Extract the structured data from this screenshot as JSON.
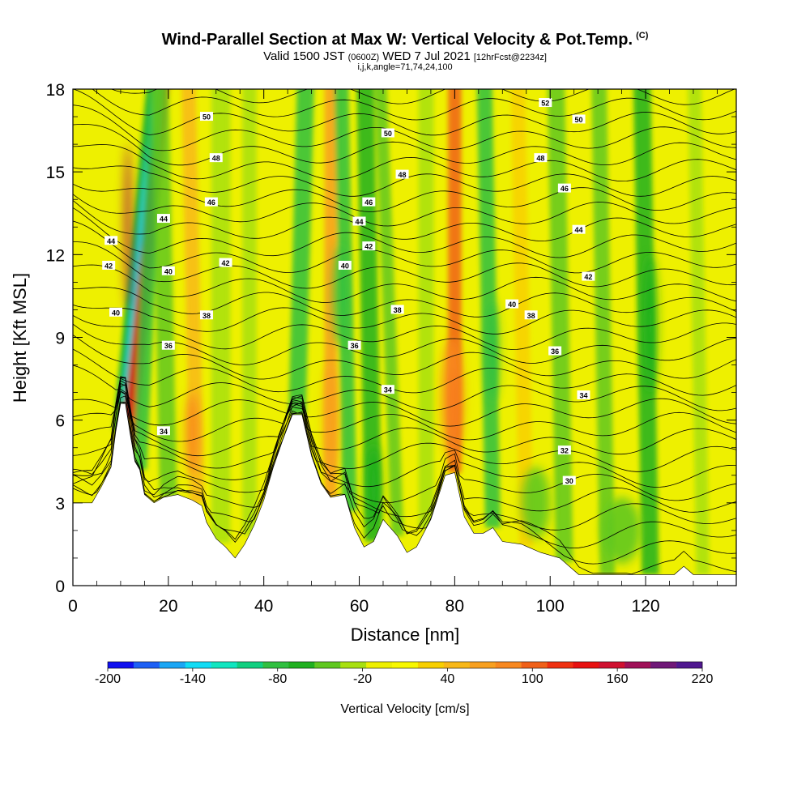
{
  "title": "Wind-Parallel Section at Max W: Vertical Velocity & Pot.Temp.",
  "copyright": "(C)",
  "subtitle_a": "Valid 1500 JST",
  "subtitle_b": "(0600Z)",
  "subtitle_c": "WED 7 Jul 2021",
  "subtitle_d": "[12hrFcst@2234z]",
  "subtitle2": "i,j,k,angle=71,74,24,100",
  "colorbar": {
    "label": "Vertical Velocity [cm/s]",
    "ticks": [
      "-200",
      "-140",
      "-80",
      "-20",
      "40",
      "100",
      "160",
      "220"
    ],
    "colors": [
      "#1010f0",
      "#1e60f5",
      "#1aa6f5",
      "#10dcf5",
      "#10e6c0",
      "#10d080",
      "#30c040",
      "#20b020",
      "#60c820",
      "#a8e010",
      "#eef000",
      "#f8f800",
      "#f8d000",
      "#f8b818",
      "#f8a020",
      "#f88820",
      "#f06018",
      "#f03010",
      "#e81010",
      "#d01030",
      "#a01058",
      "#701878",
      "#501890"
    ]
  },
  "chart_data": {
    "type": "heatmap",
    "xlabel": "Distance [nm]",
    "ylabel": "Height [Kft MSL]",
    "xlim": [
      0,
      139
    ],
    "ylim": [
      0,
      18
    ],
    "xticks": [
      "0",
      "20",
      "40",
      "60",
      "80",
      "100",
      "120"
    ],
    "yticks": [
      "0",
      "3",
      "6",
      "9",
      "12",
      "15",
      "18"
    ],
    "terrain": [
      [
        0,
        3
      ],
      [
        4,
        3
      ],
      [
        6,
        3.6
      ],
      [
        8,
        4.3
      ],
      [
        9,
        5.6
      ],
      [
        10,
        6.6
      ],
      [
        11,
        6.6
      ],
      [
        12,
        5.5
      ],
      [
        13,
        4.5
      ],
      [
        14,
        4.2
      ],
      [
        15,
        3.3
      ],
      [
        17,
        3
      ],
      [
        19,
        3.2
      ],
      [
        22,
        3.3
      ],
      [
        25,
        3.1
      ],
      [
        27,
        2.9
      ],
      [
        28,
        2.3
      ],
      [
        30,
        1.7
      ],
      [
        32,
        1.4
      ],
      [
        34,
        1
      ],
      [
        36,
        1.5
      ],
      [
        38,
        2.2
      ],
      [
        40,
        3.1
      ],
      [
        42,
        4.3
      ],
      [
        44,
        5.3
      ],
      [
        46,
        6.2
      ],
      [
        48,
        6.2
      ],
      [
        50,
        4.7
      ],
      [
        52,
        3.7
      ],
      [
        54,
        3.2
      ],
      [
        57,
        3.3
      ],
      [
        59,
        2.1
      ],
      [
        61,
        1.4
      ],
      [
        63,
        1.6
      ],
      [
        65,
        2.4
      ],
      [
        66,
        2.2
      ],
      [
        68,
        1.8
      ],
      [
        70,
        1.2
      ],
      [
        72,
        1.4
      ],
      [
        75,
        2.4
      ],
      [
        78,
        4
      ],
      [
        80,
        4.1
      ],
      [
        82,
        2.5
      ],
      [
        84,
        1.9
      ],
      [
        86,
        1.9
      ],
      [
        88,
        2.1
      ],
      [
        90,
        1.6
      ],
      [
        94,
        1.5
      ],
      [
        98,
        1.2
      ],
      [
        102,
        1
      ],
      [
        106,
        0.4
      ],
      [
        120,
        0.4
      ],
      [
        126,
        0.4
      ],
      [
        128,
        0.7
      ],
      [
        130,
        0.4
      ],
      [
        139,
        0.4
      ]
    ],
    "streaks": [
      {
        "x": 11.5,
        "w": 1.3,
        "c": "#c01020",
        "tilt": -0.4
      },
      {
        "x": 12.5,
        "w": 0.8,
        "c": "#f03010",
        "tilt": -0.4
      },
      {
        "x": 10.0,
        "w": 1.0,
        "c": "#10d0e0",
        "tilt": -0.4
      },
      {
        "x": 9.0,
        "w": 0.6,
        "c": "#20b020",
        "tilt": -0.4
      },
      {
        "x": 14.0,
        "w": 1.5,
        "c": "#30c040",
        "tilt": -0.2
      },
      {
        "x": 20.0,
        "w": 1.8,
        "c": "#60c820",
        "tilt": 0.1
      },
      {
        "x": 26.0,
        "w": 1.5,
        "c": "#f8b818",
        "tilt": 0.1
      },
      {
        "x": 31.0,
        "w": 2.0,
        "c": "#a8e010",
        "tilt": 0.0
      },
      {
        "x": 37.0,
        "w": 1.5,
        "c": "#a8e010",
        "tilt": 0.0
      },
      {
        "x": 47.0,
        "w": 1.8,
        "c": "#30c040",
        "tilt": -0.1
      },
      {
        "x": 54.0,
        "w": 1.3,
        "c": "#f8a020",
        "tilt": 0.0
      },
      {
        "x": 58.0,
        "w": 1.5,
        "c": "#30c040",
        "tilt": 0.1
      },
      {
        "x": 63.0,
        "w": 1.8,
        "c": "#20b020",
        "tilt": 0.1
      },
      {
        "x": 68.0,
        "w": 1.3,
        "c": "#60c820",
        "tilt": 0.2
      },
      {
        "x": 74.0,
        "w": 1.6,
        "c": "#a8e010",
        "tilt": 0.0
      },
      {
        "x": 80.0,
        "w": 1.4,
        "c": "#f06018",
        "tilt": 0.0
      },
      {
        "x": 88.0,
        "w": 1.6,
        "c": "#30c040",
        "tilt": 0.1
      },
      {
        "x": 95.0,
        "w": 1.5,
        "c": "#f8d000",
        "tilt": 0.1
      },
      {
        "x": 103.0,
        "w": 1.8,
        "c": "#60c820",
        "tilt": 0.1
      },
      {
        "x": 112.0,
        "w": 1.6,
        "c": "#60c820",
        "tilt": 0.1
      },
      {
        "x": 121.0,
        "w": 1.8,
        "c": "#20b020",
        "tilt": 0.1
      },
      {
        "x": 132.0,
        "w": 1.4,
        "c": "#a8e010",
        "tilt": 0.1
      }
    ],
    "blobs": [
      {
        "x": 80,
        "y": 6.5,
        "rx": 1.3,
        "ry": 1.3,
        "c": "#e81010"
      },
      {
        "x": 79.5,
        "y": 6.8,
        "rx": 2.2,
        "ry": 2.2,
        "c": "#f88820"
      },
      {
        "x": 54,
        "y": 6.0,
        "rx": 1.4,
        "ry": 2.0,
        "c": "#f8a020"
      },
      {
        "x": 25,
        "y": 5.5,
        "rx": 1.4,
        "ry": 1.5,
        "c": "#f88820"
      },
      {
        "x": 63,
        "y": 3.6,
        "rx": 1.5,
        "ry": 1.5,
        "c": "#20b020"
      },
      {
        "x": 56,
        "y": 10.5,
        "rx": 1.3,
        "ry": 1.8,
        "c": "#30c040"
      },
      {
        "x": 121,
        "y": 9.5,
        "rx": 1.4,
        "ry": 2.5,
        "c": "#20b020"
      },
      {
        "x": 88,
        "y": 8.5,
        "rx": 1.2,
        "ry": 1.8,
        "c": "#30c040"
      },
      {
        "x": 11.5,
        "y": 13,
        "rx": 0.6,
        "ry": 3,
        "c": "#a01058"
      },
      {
        "x": 97,
        "y": 3,
        "rx": 3,
        "ry": 1.3,
        "c": "#60c820"
      },
      {
        "x": 115,
        "y": 2,
        "rx": 4,
        "ry": 1.2,
        "c": "#60c820"
      }
    ],
    "contour_labels": [
      {
        "x": 28,
        "y": 17.0,
        "t": "50"
      },
      {
        "x": 30,
        "y": 15.5,
        "t": "48"
      },
      {
        "x": 29,
        "y": 13.9,
        "t": "46"
      },
      {
        "x": 19,
        "y": 13.3,
        "t": "44"
      },
      {
        "x": 8,
        "y": 12.5,
        "t": "44"
      },
      {
        "x": 7.5,
        "y": 11.6,
        "t": "42"
      },
      {
        "x": 20,
        "y": 11.4,
        "t": "40"
      },
      {
        "x": 32,
        "y": 11.7,
        "t": "42"
      },
      {
        "x": 9,
        "y": 9.9,
        "t": "40"
      },
      {
        "x": 28,
        "y": 9.8,
        "t": "38"
      },
      {
        "x": 20,
        "y": 8.7,
        "t": "36"
      },
      {
        "x": 19,
        "y": 5.6,
        "t": "34"
      },
      {
        "x": 66,
        "y": 16.4,
        "t": "50"
      },
      {
        "x": 69,
        "y": 14.9,
        "t": "48"
      },
      {
        "x": 62,
        "y": 13.9,
        "t": "46"
      },
      {
        "x": 60,
        "y": 13.2,
        "t": "44"
      },
      {
        "x": 62,
        "y": 12.3,
        "t": "42"
      },
      {
        "x": 57,
        "y": 11.6,
        "t": "40"
      },
      {
        "x": 68,
        "y": 10.0,
        "t": "38"
      },
      {
        "x": 59,
        "y": 8.7,
        "t": "36"
      },
      {
        "x": 66,
        "y": 7.1,
        "t": "34"
      },
      {
        "x": 99,
        "y": 17.5,
        "t": "52"
      },
      {
        "x": 106,
        "y": 16.9,
        "t": "50"
      },
      {
        "x": 98,
        "y": 15.5,
        "t": "48"
      },
      {
        "x": 103,
        "y": 14.4,
        "t": "46"
      },
      {
        "x": 106,
        "y": 12.9,
        "t": "44"
      },
      {
        "x": 108,
        "y": 11.2,
        "t": "42"
      },
      {
        "x": 92,
        "y": 10.2,
        "t": "40"
      },
      {
        "x": 96,
        "y": 9.8,
        "t": "38"
      },
      {
        "x": 101,
        "y": 8.5,
        "t": "36"
      },
      {
        "x": 107,
        "y": 6.9,
        "t": "34"
      },
      {
        "x": 103,
        "y": 4.9,
        "t": "32"
      },
      {
        "x": 104,
        "y": 3.8,
        "t": "30"
      }
    ]
  }
}
